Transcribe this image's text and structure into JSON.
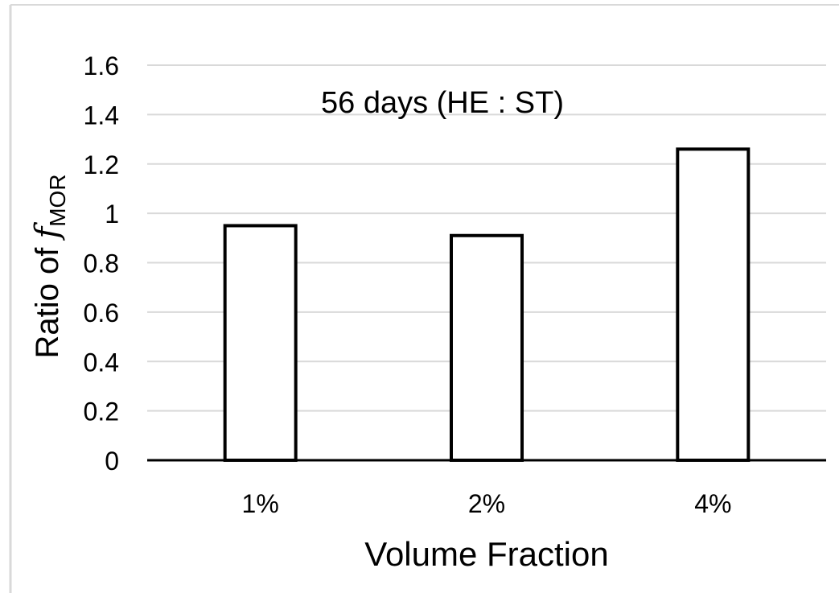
{
  "chart_data": {
    "type": "bar",
    "annotation": "56 days (HE : ST)",
    "categories": [
      "1%",
      "2%",
      "4%"
    ],
    "values": [
      0.95,
      0.91,
      1.26
    ],
    "xlabel": "Volume Fraction",
    "ylabel": {
      "prefix": "Ratio of ",
      "symbol": "f",
      "subscript": "MOR"
    },
    "ylim": [
      0,
      1.6
    ],
    "yticks": [
      "0",
      "0.2",
      "0.4",
      "0.6",
      "0.8",
      "1",
      "1.2",
      "1.4",
      "1.6"
    ],
    "grid": true,
    "legend": "none",
    "colors": {
      "bar_fill": "#ffffff",
      "bar_stroke": "#000000",
      "grid": "#d9d9d9",
      "axis": "#000000",
      "frame": "#d9d9d9"
    }
  }
}
